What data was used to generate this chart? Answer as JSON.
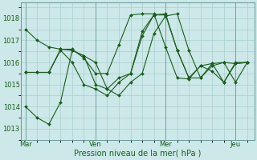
{
  "background_color": "#cce8e8",
  "grid_color": "#aacfcf",
  "line_color": "#1a5c1a",
  "marker_color": "#1a5c1a",
  "xlabel": "Pression niveau de la mer( hPa )",
  "ylim": [
    1012.5,
    1018.7
  ],
  "yticks": [
    1013,
    1014,
    1015,
    1016,
    1017,
    1018
  ],
  "xtick_labels": [
    "Mar",
    "Ven",
    "Mer",
    "Jeu"
  ],
  "xtick_positions": [
    0,
    3,
    6,
    9
  ],
  "vline_positions": [
    0,
    3,
    6,
    9
  ],
  "series": [
    {
      "x": [
        0,
        0.5,
        1.0,
        1.5,
        2.0,
        2.5,
        3.0,
        3.5,
        4.0,
        4.5,
        5.0,
        5.5,
        6.0,
        6.5,
        7.0,
        7.5,
        8.0,
        8.5,
        9.0,
        9.5
      ],
      "y": [
        1017.5,
        1017.0,
        1016.7,
        1016.6,
        1016.6,
        1016.2,
        1015.5,
        1015.5,
        1016.8,
        1018.15,
        1018.2,
        1018.2,
        1016.7,
        1015.3,
        1015.25,
        1015.85,
        1015.95,
        1016.0,
        1015.95,
        1016.0
      ]
    },
    {
      "x": [
        0,
        0.5,
        1.0,
        1.5,
        2.0,
        2.5,
        3.0,
        3.5,
        4.0,
        4.5,
        5.0,
        5.5,
        6.0,
        6.5,
        7.0,
        7.5,
        8.0,
        8.5,
        9.0,
        9.5
      ],
      "y": [
        1015.55,
        1015.55,
        1015.55,
        1016.6,
        1016.55,
        1016.3,
        1016.0,
        1014.8,
        1015.3,
        1015.5,
        1017.4,
        1018.15,
        1018.15,
        1016.55,
        1015.3,
        1015.85,
        1015.6,
        1015.1,
        1016.0,
        1016.0
      ]
    },
    {
      "x": [
        0,
        0.5,
        1.0,
        1.5,
        2.0,
        2.5,
        3.0,
        3.5,
        4.0,
        4.5,
        5.0,
        5.5,
        6.0,
        6.5,
        7.0,
        7.5,
        8.0,
        8.5,
        9.0,
        9.5
      ],
      "y": [
        1015.55,
        1015.55,
        1015.55,
        1016.55,
        1016.0,
        1015.0,
        1014.8,
        1014.5,
        1015.1,
        1015.5,
        1017.2,
        1018.15,
        1018.2,
        1016.55,
        1015.3,
        1015.3,
        1015.95,
        1015.1,
        1015.95,
        1016.0
      ]
    },
    {
      "x": [
        0,
        0.5,
        1.0,
        1.5,
        2.0,
        2.5,
        3.0,
        3.5,
        4.0,
        4.5,
        5.0,
        5.5,
        6.0,
        6.5,
        7.0,
        7.5,
        8.0,
        8.5,
        9.0,
        9.5
      ],
      "y": [
        1014.0,
        1013.5,
        1013.2,
        1014.2,
        1016.55,
        1016.3,
        1015.0,
        1014.8,
        1014.5,
        1015.1,
        1015.5,
        1017.3,
        1018.1,
        1018.2,
        1016.55,
        1015.3,
        1015.85,
        1016.0,
        1015.1,
        1016.0
      ]
    }
  ],
  "xlim": [
    -0.2,
    9.8
  ],
  "ylabel_fontsize": 6,
  "xlabel_fontsize": 7,
  "ytick_fontsize": 6,
  "xtick_fontsize": 6
}
